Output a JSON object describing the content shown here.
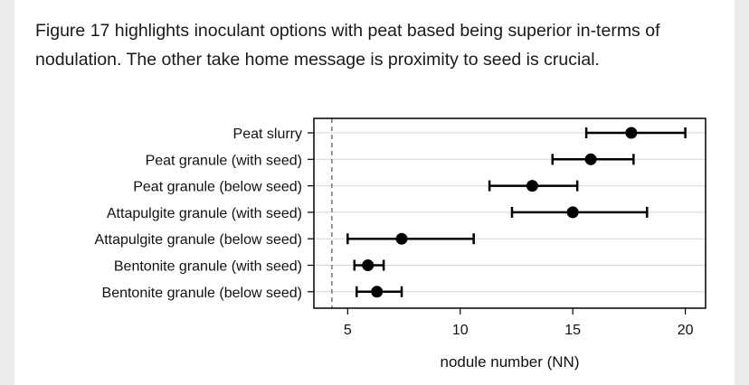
{
  "caption": "Figure 17 highlights inoculant options with peat based being superior in-terms of nodulation. The other take home message is proximity to seed is crucial.",
  "chart_data": {
    "type": "dot-errorbar",
    "orientation": "horizontal",
    "categories": [
      "Peat slurry",
      "Peat granule (with seed)",
      "Peat granule (below seed)",
      "Attapulgite granule (with seed)",
      "Attapulgite granule (below seed)",
      "Bentonite granule (with seed)",
      "Bentonite granule (below seed)"
    ],
    "points": [
      {
        "mean": 17.6,
        "low": 15.6,
        "high": 20.0
      },
      {
        "mean": 15.8,
        "low": 14.1,
        "high": 17.7
      },
      {
        "mean": 13.2,
        "low": 11.3,
        "high": 15.2
      },
      {
        "mean": 15.0,
        "low": 12.3,
        "high": 18.3
      },
      {
        "mean": 7.4,
        "low": 5.0,
        "high": 10.6
      },
      {
        "mean": 5.9,
        "low": 5.3,
        "high": 6.6
      },
      {
        "mean": 6.3,
        "low": 5.4,
        "high": 7.4
      }
    ],
    "reference_line": 4.3,
    "xlim": [
      3.5,
      20.9
    ],
    "xticks": [
      5,
      10,
      15,
      20
    ],
    "xlabel": "nodule number (NN)",
    "grid": "horizontal",
    "colors": {
      "marker": "#000000",
      "grid": "#d6d6d6",
      "axis": "#000000"
    }
  }
}
